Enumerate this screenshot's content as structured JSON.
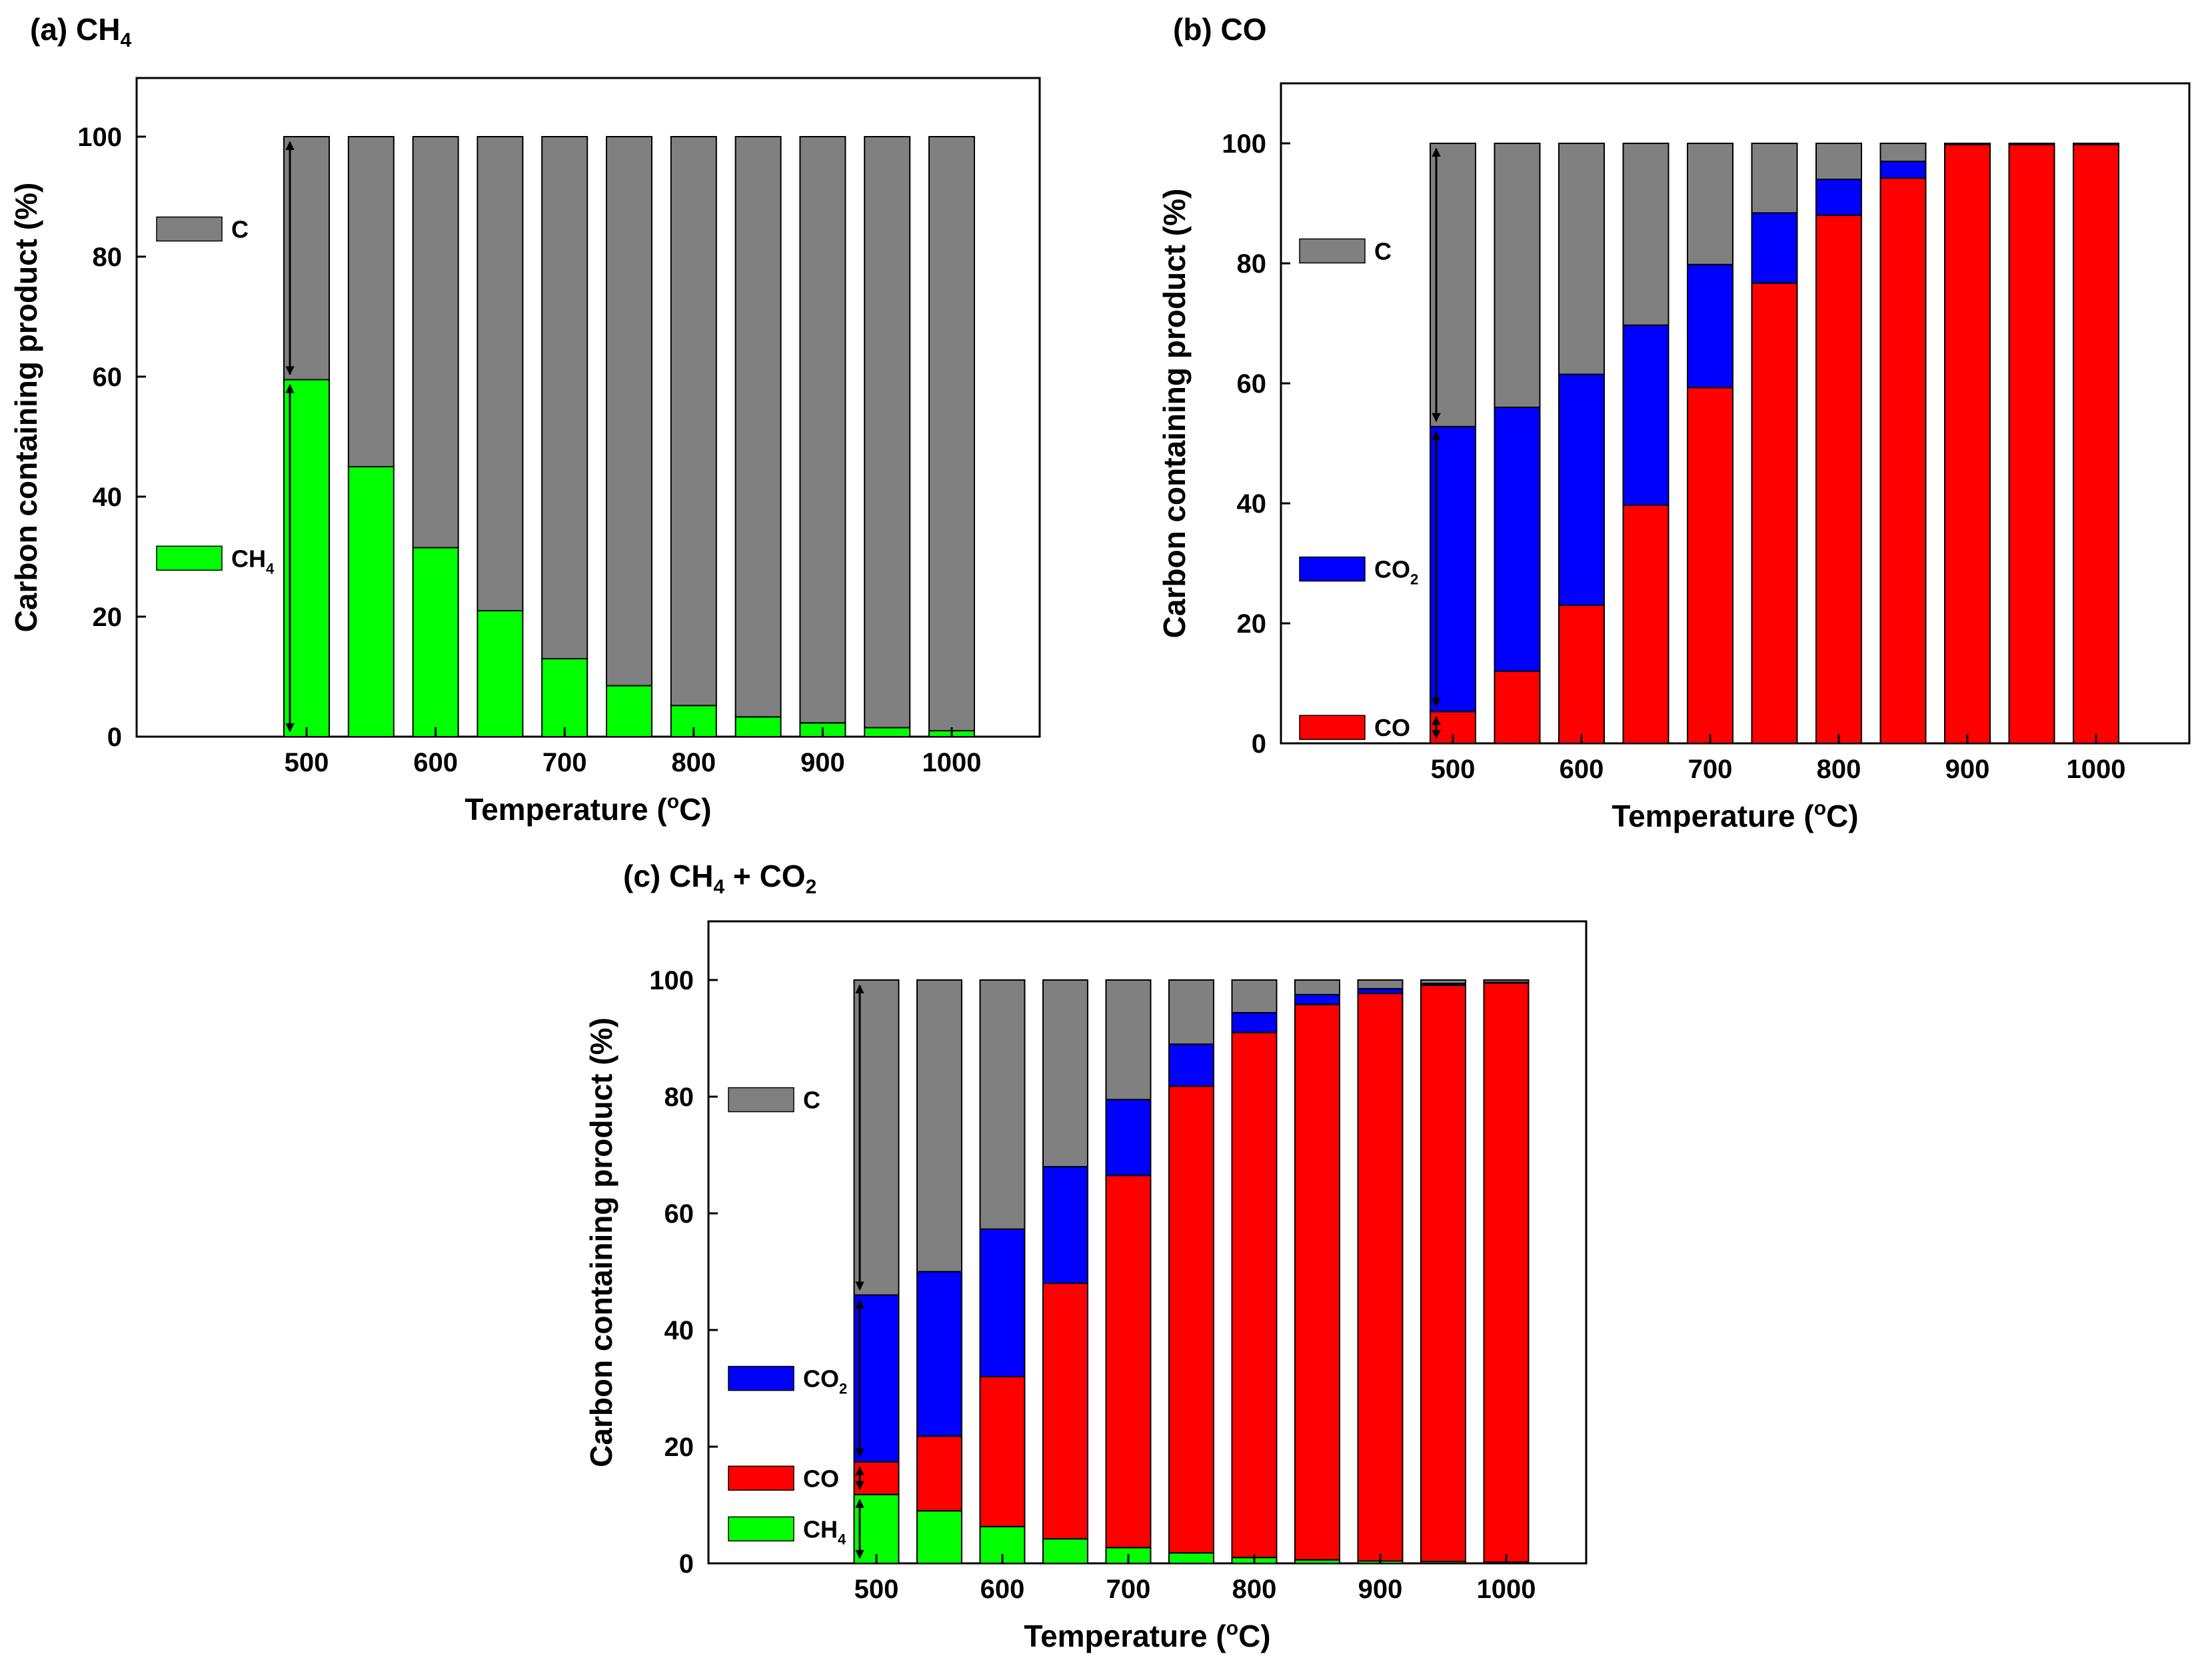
{
  "figure": {
    "colors": {
      "C": "#808080",
      "CH4": "#00ff00",
      "CO2": "#0000ff",
      "CO": "#ff0000"
    },
    "xlabel": "Temperature (",
    "xlabel_deg": "o",
    "xlabel_end": "C)",
    "ylabel": "Carbon containing product (%)"
  },
  "chart_data": [
    {
      "id": "a",
      "type": "bar",
      "stacked": true,
      "panel_label": "(a)",
      "title": "CH",
      "title_sub": "4",
      "title_tail": "",
      "x": [
        500,
        550,
        600,
        650,
        700,
        750,
        800,
        850,
        900,
        950,
        1000
      ],
      "x_tick_labels": [
        "500",
        "600",
        "700",
        "800",
        "900",
        "1000"
      ],
      "y_ticks": [
        "0",
        "20",
        "40",
        "60",
        "80",
        "100"
      ],
      "ylim": [
        0,
        110
      ],
      "series": [
        {
          "key": "CH4",
          "name": "CH",
          "sub": "4",
          "values": [
            59.5,
            45,
            31.5,
            21,
            13,
            8.5,
            5.2,
            3.3,
            2.3,
            1.5,
            1.0
          ]
        },
        {
          "key": "C",
          "name": "C",
          "sub": "",
          "values": [
            40.5,
            55,
            68.5,
            79,
            87,
            91.5,
            94.8,
            96.7,
            97.7,
            98.5,
            99.0
          ]
        }
      ],
      "legend_order": [
        "C",
        "CH4"
      ]
    },
    {
      "id": "b",
      "type": "bar",
      "stacked": true,
      "panel_label": "(b)",
      "title": "CO",
      "title_sub": "",
      "title_tail": "",
      "x": [
        500,
        550,
        600,
        650,
        700,
        750,
        800,
        850,
        900,
        950,
        1000
      ],
      "x_tick_labels": [
        "500",
        "600",
        "700",
        "800",
        "900",
        "1000"
      ],
      "y_ticks": [
        "0",
        "20",
        "40",
        "60",
        "80",
        "100"
      ],
      "ylim": [
        0,
        110
      ],
      "series": [
        {
          "key": "CO",
          "name": "CO",
          "sub": "",
          "values": [
            5.3,
            12,
            23,
            39.7,
            59.3,
            76.7,
            88,
            94.2,
            99.8,
            99.8,
            99.8
          ]
        },
        {
          "key": "CO2",
          "name": "CO",
          "sub": "2",
          "values": [
            47.5,
            44,
            38.5,
            30,
            20.5,
            11.7,
            6,
            2.8,
            0,
            0,
            0
          ]
        },
        {
          "key": "C",
          "name": "C",
          "sub": "",
          "values": [
            47.2,
            44,
            38.5,
            30.3,
            20.2,
            11.6,
            6,
            3,
            0.2,
            0.2,
            0.2
          ]
        }
      ],
      "legend_order": [
        "C",
        "CO2",
        "CO"
      ]
    },
    {
      "id": "c",
      "type": "bar",
      "stacked": true,
      "panel_label": "(c)",
      "title": "CH",
      "title_sub": "4",
      "title_tail": " + CO",
      "title_tail_sub": "2",
      "x": [
        500,
        550,
        600,
        650,
        700,
        750,
        800,
        850,
        900,
        950,
        1000
      ],
      "x_tick_labels": [
        "500",
        "600",
        "700",
        "800",
        "900",
        "1000"
      ],
      "y_ticks": [
        "0",
        "20",
        "40",
        "60",
        "80",
        "100"
      ],
      "ylim": [
        0,
        110
      ],
      "series": [
        {
          "key": "CH4",
          "name": "CH",
          "sub": "4",
          "values": [
            11.8,
            9,
            6.3,
            4.2,
            2.7,
            1.8,
            1.0,
            0.6,
            0.4,
            0.3,
            0.2
          ]
        },
        {
          "key": "CO",
          "name": "CO",
          "sub": "",
          "values": [
            5.6,
            12.8,
            25.7,
            43.8,
            63.8,
            80,
            90,
            95.2,
            97.3,
            98.8,
            99.3
          ]
        },
        {
          "key": "CO2",
          "name": "CO",
          "sub": "2",
          "values": [
            28.6,
            28.2,
            25.3,
            20,
            13,
            7.2,
            3.4,
            1.7,
            0.8,
            0.3,
            0.1
          ]
        },
        {
          "key": "C",
          "name": "C",
          "sub": "",
          "values": [
            54,
            50,
            42.7,
            32,
            20.5,
            11,
            5.6,
            2.5,
            1.5,
            0.6,
            0.4
          ]
        }
      ],
      "legend_order": [
        "C",
        "CO2",
        "CO",
        "CH4"
      ]
    }
  ]
}
